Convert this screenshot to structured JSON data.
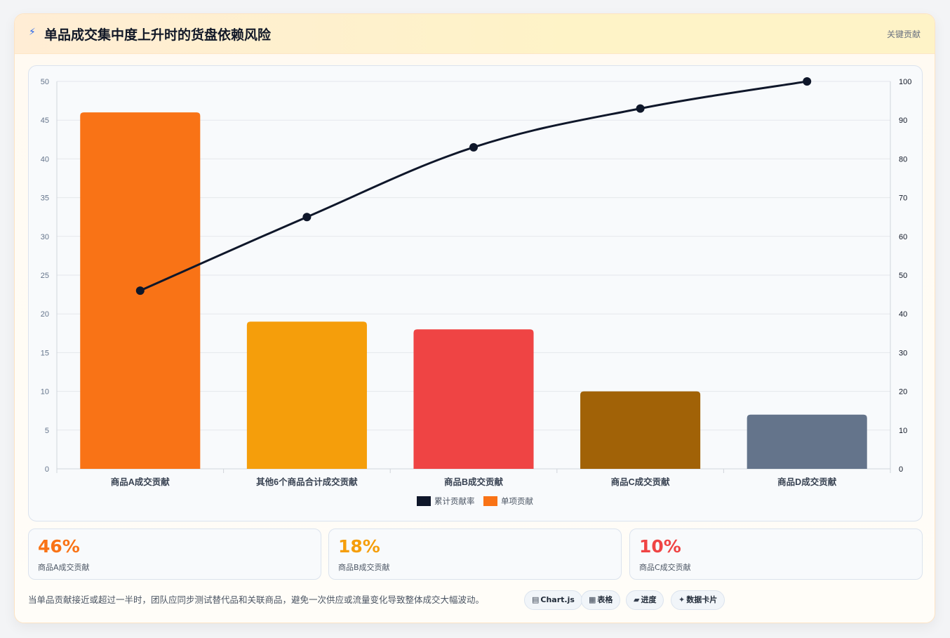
{
  "header": {
    "icon": "lightning-icon",
    "title": "单品成交集中度上升时的货盘依赖风险",
    "tag": "关键贡献"
  },
  "chart_data": {
    "type": "bar",
    "categories": [
      "商品A成交贡献",
      "其他6个商品合计成交贡献",
      "商品B成交贡献",
      "商品C成交贡献",
      "商品D成交贡献"
    ],
    "series": [
      {
        "name": "单项贡献",
        "type": "bar",
        "axis": "left",
        "values": [
          46,
          19,
          18,
          10,
          7
        ],
        "colors": [
          "#f97316",
          "#f59e0b",
          "#ef4444",
          "#a16207",
          "#64748b"
        ]
      },
      {
        "name": "累计贡献率",
        "type": "line",
        "axis": "right",
        "values": [
          46,
          65,
          83,
          93,
          100
        ],
        "color": "#0f172a"
      }
    ],
    "ylim": [
      0,
      50
    ],
    "y2lim": [
      0,
      100
    ],
    "yticks": [
      "0",
      "5",
      "10",
      "15",
      "20",
      "25",
      "30",
      "35",
      "40",
      "45",
      "50"
    ],
    "y2ticks": [
      "0",
      "10",
      "20",
      "30",
      "40",
      "50",
      "60",
      "70",
      "80",
      "90",
      "100"
    ],
    "legend": [
      {
        "label": "累计贡献率",
        "color": "#0f172a"
      },
      {
        "label": "单项贡献",
        "color": "#f97316"
      }
    ],
    "legend_position": "bottom",
    "grid": true
  },
  "stats": [
    {
      "value": "46%",
      "label": "商品A成交贡献",
      "color": "#f97316"
    },
    {
      "value": "18%",
      "label": "商品B成交贡献",
      "color": "#f59e0b"
    },
    {
      "value": "10%",
      "label": "商品C成交贡献",
      "color": "#ef4444"
    }
  ],
  "footnote": "当单品贡献接近或超过一半时，团队应同步测试替代品和关联商品，避免一次供应或流量变化导致整体成交大幅波动。",
  "chips": [
    {
      "icon": "chart-icon",
      "label": "Chart.js"
    },
    {
      "icon": "table-icon",
      "label": "表格"
    },
    {
      "icon": "progress-icon",
      "label": "进度"
    },
    {
      "icon": "sparkle-icon",
      "label": "数据卡片"
    }
  ]
}
